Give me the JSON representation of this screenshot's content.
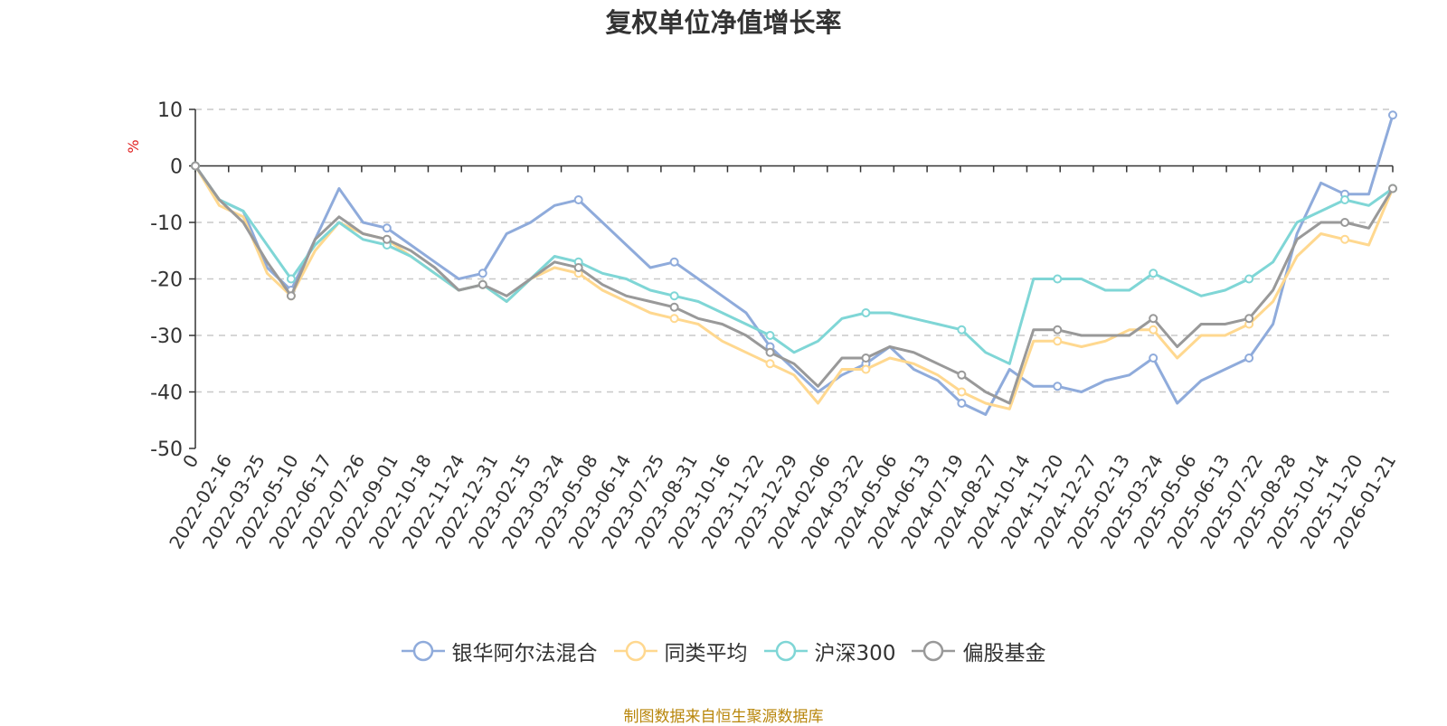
{
  "chart_data": {
    "type": "line",
    "title": "复权单位净值增长率",
    "ylabel": "%",
    "ylim": [
      -50,
      10
    ],
    "yticks": [
      10,
      0,
      -10,
      -20,
      -30,
      -40,
      -50
    ],
    "xlabel": "",
    "x_tick_labels": [
      "0",
      "2022-02-16",
      "2022-03-25",
      "2022-05-10",
      "2022-06-17",
      "2022-07-26",
      "2022-09-01",
      "2022-10-18",
      "2022-11-24",
      "2022-12-31",
      "2023-02-15",
      "2023-03-24",
      "2023-05-08",
      "2023-06-14",
      "2023-07-25",
      "2023-08-31",
      "2023-10-16",
      "2023-11-22",
      "2023-12-29",
      "2024-02-06",
      "2024-03-22",
      "2024-05-06",
      "2024-06-13",
      "2024-07-19",
      "2024-08-27",
      "2024-10-14",
      "2024-11-20",
      "2024-12-27",
      "2025-02-13",
      "2025-03-24",
      "2025-05-06",
      "2025-06-13",
      "2025-07-22",
      "2025-08-28",
      "2025-10-14",
      "2025-11-20",
      "2026-01-21"
    ],
    "grid": true,
    "legend_position": "bottom",
    "series": [
      {
        "name": "银华阿尔法混合",
        "color": "#8fabdb",
        "values": [
          0,
          -6,
          -8,
          -18,
          -22,
          -13,
          -4,
          -10,
          -11,
          -14,
          -17,
          -20,
          -19,
          -12,
          -10,
          -7,
          -6,
          -10,
          -14,
          -18,
          -17,
          -20,
          -23,
          -26,
          -32,
          -36,
          -40,
          -37,
          -35,
          -32,
          -36,
          -38,
          -42,
          -44,
          -36,
          -39,
          -39,
          -40,
          -38,
          -37,
          -34,
          -42,
          -38,
          -36,
          -34,
          -28,
          -12,
          -3,
          -5,
          -5,
          9
        ]
      },
      {
        "name": "同类平均",
        "color": "#ffd88f",
        "values": [
          0,
          -7,
          -9,
          -19,
          -23,
          -15,
          -10,
          -12,
          -13,
          -16,
          -19,
          -22,
          -21,
          -24,
          -20,
          -18,
          -19,
          -22,
          -24,
          -26,
          -27,
          -28,
          -31,
          -33,
          -35,
          -37,
          -42,
          -36,
          -36,
          -34,
          -35,
          -37,
          -40,
          -42,
          -43,
          -31,
          -31,
          -32,
          -31,
          -29,
          -29,
          -34,
          -30,
          -30,
          -28,
          -24,
          -16,
          -12,
          -13,
          -14,
          -4
        ]
      },
      {
        "name": "沪深300",
        "color": "#7fd6d6",
        "values": [
          0,
          -6,
          -8,
          -14,
          -20,
          -14,
          -10,
          -13,
          -14,
          -16,
          -19,
          -22,
          -21,
          -24,
          -20,
          -16,
          -17,
          -19,
          -20,
          -22,
          -23,
          -24,
          -26,
          -28,
          -30,
          -33,
          -31,
          -27,
          -26,
          -26,
          -27,
          -28,
          -29,
          -33,
          -35,
          -20,
          -20,
          -20,
          -22,
          -22,
          -19,
          -21,
          -23,
          -22,
          -20,
          -17,
          -10,
          -8,
          -6,
          -7,
          -4
        ]
      },
      {
        "name": "偏股基金",
        "color": "#999999",
        "values": [
          0,
          -6,
          -10,
          -17,
          -23,
          -13,
          -9,
          -12,
          -13,
          -15,
          -18,
          -22,
          -21,
          -23,
          -20,
          -17,
          -18,
          -21,
          -23,
          -24,
          -25,
          -27,
          -28,
          -30,
          -33,
          -35,
          -39,
          -34,
          -34,
          -32,
          -33,
          -35,
          -37,
          -40,
          -42,
          -29,
          -29,
          -30,
          -30,
          -30,
          -27,
          -32,
          -28,
          -28,
          -27,
          -22,
          -13,
          -10,
          -10,
          -11,
          -4
        ]
      }
    ]
  },
  "source_note": "制图数据来自恒生聚源数据库"
}
